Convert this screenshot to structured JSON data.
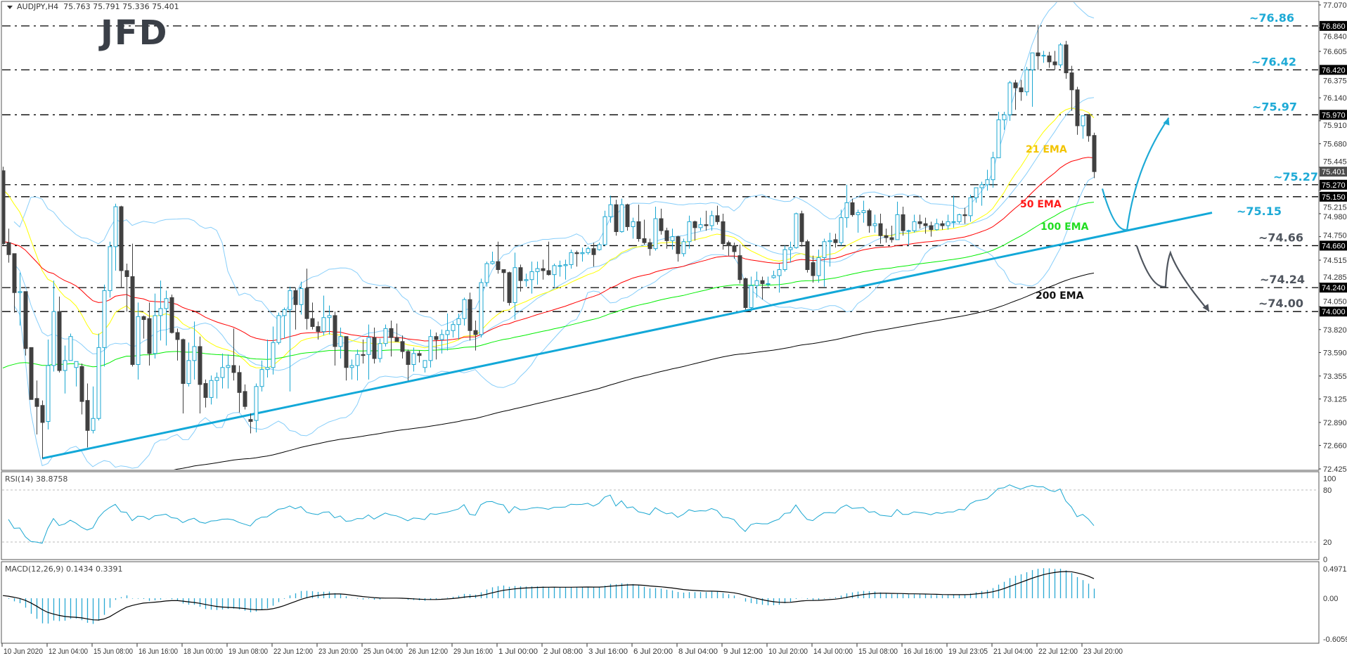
{
  "title": {
    "symbol": "AUDJPY,H4",
    "ohlc": "75.763 75.791 75.336 75.401"
  },
  "logo_text": "JFD",
  "chart_data": {
    "type": "candlestick",
    "symbol": "AUDJPY",
    "timeframe": "H4",
    "colors": {
      "bull": "#1ba7d1",
      "bear": "#404040",
      "bands": "#87cefa",
      "trendline": "#12a8d8",
      "up_scenario": "#1eaad6",
      "down_scenario": "#4f555e"
    },
    "y_axis": {
      "min": 72.425,
      "max": 77.07,
      "ticks": [
        "77.070",
        "76.840",
        "76.605",
        "76.375",
        "76.140",
        "75.910",
        "75.680",
        "75.445",
        "75.215",
        "74.980",
        "74.750",
        "74.515",
        "74.285",
        "74.050",
        "73.820",
        "73.590",
        "73.355",
        "73.125",
        "72.890",
        "72.660",
        "72.425"
      ]
    },
    "x_axis": {
      "tick_every_bars": 8,
      "tick_labels": [
        "10 Jun 2020",
        "12 Jun 04:00",
        "15 Jun 08:00",
        "16 Jun 16:00",
        "18 Jun 00:00",
        "19 Jun 08:00",
        "22 Jun 12:00",
        "23 Jun 20:00",
        "25 Jun 04:00",
        "26 Jun 12:00",
        "29 Jun 16:00",
        "1 Jul 00:00",
        "2 Jul 08:00",
        "3 Jul 16:00",
        "6 Jul 20:00",
        "8 Jul 04:00",
        "9 Jul 12:00",
        "10 Jul 20:00",
        "14 Jul 00:00",
        "15 Jul 08:00",
        "16 Jul 16:00",
        "19 Jul 23:05",
        "21 Jul 04:00",
        "22 Jul 12:00",
        "23 Jul 20:00"
      ]
    },
    "current_price": "75.401",
    "candles_ohlc": [
      [
        75.41,
        75.45,
        74.66,
        74.68
      ],
      [
        74.69,
        74.83,
        74.49,
        74.57
      ],
      [
        74.58,
        74.58,
        73.99,
        74.19
      ],
      [
        74.19,
        74.39,
        73.86,
        74.2
      ],
      [
        74.2,
        74.2,
        73.56,
        73.63
      ],
      [
        73.64,
        73.64,
        73.12,
        73.12
      ],
      [
        73.13,
        73.31,
        72.77,
        73.05
      ],
      [
        73.06,
        73.11,
        72.53,
        72.89
      ],
      [
        72.9,
        73.72,
        72.82,
        73.46
      ],
      [
        73.46,
        74.31,
        73.4,
        74.0
      ],
      [
        74.0,
        74.15,
        73.39,
        73.41
      ],
      [
        73.41,
        73.66,
        73.18,
        73.51
      ],
      [
        73.51,
        73.78,
        73.51,
        73.75
      ],
      [
        73.44,
        73.5,
        73.25,
        73.5
      ],
      [
        73.45,
        73.48,
        72.97,
        73.1
      ],
      [
        73.11,
        73.28,
        72.64,
        72.81
      ],
      [
        72.81,
        73.25,
        72.78,
        72.93
      ],
      [
        72.93,
        73.78,
        72.91,
        73.64
      ],
      [
        73.64,
        74.27,
        73.45,
        74.21
      ],
      [
        74.21,
        74.7,
        74.14,
        74.65
      ],
      [
        74.65,
        75.08,
        74.41,
        75.05
      ],
      [
        75.05,
        75.06,
        74.24,
        74.41
      ],
      [
        74.41,
        74.48,
        74.0,
        74.35
      ],
      [
        74.35,
        74.68,
        73.45,
        73.47
      ],
      [
        73.47,
        74.09,
        73.32,
        73.95
      ],
      [
        73.95,
        73.96,
        73.73,
        73.92
      ],
      [
        73.93,
        74.09,
        73.46,
        73.58
      ],
      [
        73.58,
        74.18,
        73.53,
        73.96
      ],
      [
        73.96,
        74.31,
        73.71,
        74.03
      ],
      [
        74.03,
        74.21,
        73.66,
        74.13
      ],
      [
        74.14,
        74.17,
        73.78,
        73.79
      ],
      [
        73.79,
        73.83,
        73.51,
        73.72
      ],
      [
        73.72,
        73.73,
        72.98,
        73.28
      ],
      [
        73.28,
        73.69,
        73.25,
        73.51
      ],
      [
        73.51,
        73.9,
        73.32,
        73.65
      ],
      [
        73.65,
        73.75,
        72.98,
        73.27
      ],
      [
        73.28,
        73.32,
        73.04,
        73.14
      ],
      [
        73.14,
        73.36,
        73.07,
        73.31
      ],
      [
        73.31,
        73.39,
        73.13,
        73.34
      ],
      [
        73.34,
        73.58,
        73.23,
        73.44
      ],
      [
        73.44,
        73.57,
        73.23,
        73.46
      ],
      [
        73.46,
        73.83,
        73.31,
        73.39
      ],
      [
        73.39,
        73.46,
        72.99,
        73.19
      ],
      [
        73.2,
        73.27,
        73.02,
        73.05
      ],
      [
        72.92,
        72.98,
        72.78,
        72.9
      ],
      [
        72.91,
        73.28,
        72.79,
        73.25
      ],
      [
        73.25,
        73.51,
        73.2,
        73.42
      ],
      [
        73.42,
        73.72,
        73.34,
        73.44
      ],
      [
        73.44,
        73.85,
        73.37,
        73.69
      ],
      [
        73.69,
        73.99,
        73.67,
        73.96
      ],
      [
        73.96,
        74.04,
        73.73,
        74.02
      ],
      [
        74.02,
        74.25,
        73.2,
        74.21
      ],
      [
        74.21,
        74.24,
        73.82,
        74.07
      ],
      [
        74.07,
        74.3,
        73.97,
        74.23
      ],
      [
        74.23,
        74.43,
        73.82,
        73.93
      ],
      [
        73.93,
        74.09,
        73.82,
        73.85
      ],
      [
        73.85,
        73.9,
        73.72,
        73.8
      ],
      [
        73.8,
        74.16,
        73.76,
        73.94
      ],
      [
        73.94,
        74.06,
        73.77,
        73.96
      ],
      [
        73.96,
        74.0,
        73.46,
        73.65
      ],
      [
        73.65,
        73.84,
        73.53,
        73.75
      ],
      [
        73.75,
        73.75,
        73.31,
        73.44
      ],
      [
        73.44,
        73.52,
        73.32,
        73.46
      ],
      [
        73.46,
        73.62,
        73.31,
        73.57
      ],
      [
        73.57,
        73.72,
        73.48,
        73.56
      ],
      [
        73.57,
        73.87,
        73.32,
        73.74
      ],
      [
        73.74,
        73.84,
        73.48,
        73.53
      ],
      [
        73.53,
        73.73,
        73.49,
        73.68
      ],
      [
        73.68,
        73.87,
        73.65,
        73.83
      ],
      [
        73.83,
        73.91,
        73.55,
        73.74
      ],
      [
        73.74,
        73.88,
        73.7,
        73.7
      ],
      [
        73.7,
        73.76,
        73.53,
        73.6
      ],
      [
        73.6,
        73.62,
        73.31,
        73.47
      ],
      [
        73.47,
        73.64,
        73.4,
        73.58
      ],
      [
        73.58,
        73.61,
        73.49,
        73.56
      ],
      [
        73.44,
        73.51,
        73.39,
        73.51
      ],
      [
        73.51,
        73.82,
        73.44,
        73.75
      ],
      [
        73.75,
        73.79,
        73.52,
        73.72
      ],
      [
        73.72,
        73.82,
        73.58,
        73.77
      ],
      [
        73.77,
        73.98,
        73.61,
        73.81
      ],
      [
        73.81,
        73.9,
        73.74,
        73.87
      ],
      [
        73.87,
        73.98,
        73.72,
        73.93
      ],
      [
        73.93,
        74.14,
        73.86,
        74.12
      ],
      [
        74.12,
        74.19,
        73.71,
        73.81
      ],
      [
        73.81,
        73.91,
        73.61,
        73.77
      ],
      [
        73.77,
        74.33,
        73.74,
        74.29
      ],
      [
        74.29,
        74.5,
        74.25,
        74.48
      ],
      [
        74.48,
        74.6,
        74.47,
        74.5
      ],
      [
        74.5,
        74.7,
        74.38,
        74.42
      ],
      [
        74.42,
        74.42,
        74.1,
        74.39
      ],
      [
        74.39,
        74.4,
        74.06,
        74.09
      ],
      [
        74.09,
        74.59,
        73.92,
        74.44
      ],
      [
        74.44,
        74.47,
        74.2,
        74.31
      ],
      [
        74.31,
        74.38,
        74.25,
        74.32
      ],
      [
        74.32,
        74.5,
        74.18,
        74.4
      ],
      [
        74.4,
        74.5,
        74.27,
        74.43
      ],
      [
        74.43,
        74.52,
        74.32,
        74.41
      ],
      [
        74.41,
        74.7,
        74.36,
        74.37
      ],
      [
        74.37,
        74.48,
        74.25,
        74.46
      ],
      [
        74.46,
        74.51,
        74.35,
        74.46
      ],
      [
        74.46,
        74.52,
        74.32,
        74.47
      ],
      [
        74.47,
        74.62,
        74.43,
        74.59
      ],
      [
        74.59,
        74.61,
        74.45,
        74.58
      ],
      [
        74.58,
        74.64,
        74.5,
        74.59
      ],
      [
        74.59,
        74.65,
        74.57,
        74.63
      ],
      [
        74.63,
        74.69,
        74.45,
        74.57
      ],
      [
        74.62,
        74.69,
        74.61,
        74.67
      ],
      [
        74.67,
        75.01,
        74.66,
        74.95
      ],
      [
        74.95,
        75.16,
        74.89,
        75.07
      ],
      [
        75.07,
        75.12,
        74.76,
        74.8
      ],
      [
        74.8,
        75.13,
        74.79,
        75.07
      ],
      [
        75.07,
        75.08,
        74.81,
        74.85
      ],
      [
        74.85,
        74.94,
        74.73,
        74.9
      ],
      [
        74.9,
        75.07,
        74.7,
        74.73
      ],
      [
        74.73,
        74.92,
        74.67,
        74.69
      ],
      [
        74.69,
        74.73,
        74.56,
        74.63
      ],
      [
        74.63,
        75.05,
        74.61,
        74.93
      ],
      [
        74.93,
        75.03,
        74.77,
        74.81
      ],
      [
        74.81,
        74.84,
        74.63,
        74.71
      ],
      [
        74.71,
        74.83,
        74.62,
        74.75
      ],
      [
        74.75,
        74.76,
        74.5,
        74.58
      ],
      [
        74.58,
        74.73,
        74.55,
        74.7
      ],
      [
        74.7,
        74.96,
        74.63,
        74.9
      ],
      [
        74.9,
        74.91,
        74.71,
        74.84
      ],
      [
        74.84,
        74.94,
        74.81,
        74.87
      ],
      [
        74.87,
        75.01,
        74.81,
        74.86
      ],
      [
        74.86,
        75.01,
        74.81,
        74.96
      ],
      [
        74.96,
        75.06,
        74.87,
        74.9
      ],
      [
        74.9,
        74.98,
        74.62,
        74.68
      ],
      [
        74.69,
        74.71,
        74.56,
        74.66
      ],
      [
        74.66,
        74.69,
        74.53,
        74.6
      ],
      [
        74.56,
        74.67,
        74.28,
        74.32
      ],
      [
        74.33,
        74.34,
        74.02,
        74.04
      ],
      [
        74.04,
        74.35,
        74.0,
        74.26
      ],
      [
        74.26,
        74.4,
        74.14,
        74.31
      ],
      [
        74.31,
        74.35,
        74.12,
        74.28
      ],
      [
        74.28,
        74.35,
        74.25,
        74.28
      ],
      [
        74.34,
        74.41,
        74.33,
        74.36
      ],
      [
        74.36,
        74.48,
        74.19,
        74.42
      ],
      [
        74.42,
        74.66,
        74.4,
        74.62
      ],
      [
        74.62,
        74.7,
        74.49,
        74.64
      ],
      [
        74.64,
        74.99,
        74.63,
        74.98
      ],
      [
        74.98,
        75.01,
        74.65,
        74.7
      ],
      [
        74.7,
        74.72,
        74.39,
        74.42
      ],
      [
        74.49,
        74.56,
        74.29,
        74.36
      ],
      [
        74.36,
        74.62,
        74.29,
        74.54
      ],
      [
        74.54,
        74.73,
        74.25,
        74.7
      ],
      [
        74.7,
        74.79,
        74.45,
        74.71
      ],
      [
        74.72,
        74.78,
        74.64,
        74.69
      ],
      [
        74.69,
        75.02,
        74.66,
        74.94
      ],
      [
        74.94,
        75.27,
        74.84,
        75.09
      ],
      [
        75.09,
        75.13,
        74.95,
        74.97
      ],
      [
        74.97,
        75.02,
        74.79,
        74.99
      ],
      [
        74.99,
        75.11,
        74.89,
        75.01
      ],
      [
        75.01,
        75.03,
        74.79,
        74.86
      ],
      [
        74.86,
        74.97,
        74.79,
        74.88
      ],
      [
        74.88,
        74.98,
        74.68,
        74.76
      ],
      [
        74.76,
        74.83,
        74.69,
        74.74
      ],
      [
        74.74,
        74.86,
        74.69,
        74.72
      ],
      [
        74.72,
        75.1,
        74.72,
        74.97
      ],
      [
        74.97,
        75.05,
        74.76,
        74.81
      ],
      [
        74.81,
        74.82,
        74.66,
        74.81
      ],
      [
        74.81,
        74.97,
        74.79,
        74.9
      ],
      [
        74.9,
        74.97,
        74.83,
        74.88
      ],
      [
        74.88,
        74.94,
        74.78,
        74.86
      ],
      [
        74.86,
        74.9,
        74.75,
        74.82
      ],
      [
        74.82,
        74.93,
        74.81,
        74.88
      ],
      [
        74.88,
        74.91,
        74.82,
        74.86
      ],
      [
        74.86,
        74.97,
        74.82,
        74.9
      ],
      [
        74.9,
        75.16,
        74.84,
        74.9
      ],
      [
        74.9,
        74.98,
        74.88,
        74.97
      ],
      [
        74.97,
        75.04,
        74.88,
        74.96
      ],
      [
        74.96,
        75.17,
        74.9,
        75.14
      ],
      [
        75.14,
        75.24,
        75.09,
        75.24
      ],
      [
        75.24,
        75.3,
        75.06,
        75.27
      ],
      [
        75.27,
        75.42,
        75.21,
        75.32
      ],
      [
        75.32,
        75.6,
        75.24,
        75.54
      ],
      [
        75.54,
        76.0,
        75.54,
        75.92
      ],
      [
        75.92,
        76.0,
        75.82,
        75.97
      ],
      [
        75.97,
        76.31,
        75.91,
        76.29
      ],
      [
        76.29,
        76.32,
        76.02,
        76.24
      ],
      [
        76.24,
        76.32,
        76.11,
        76.2
      ],
      [
        76.2,
        76.45,
        76.16,
        76.42
      ],
      [
        76.42,
        76.59,
        76.05,
        76.59
      ],
      [
        76.59,
        76.87,
        76.42,
        76.56
      ],
      [
        76.56,
        76.61,
        76.49,
        76.565
      ],
      [
        76.56,
        76.6,
        76.44,
        76.5
      ],
      [
        76.5,
        76.61,
        76.42,
        76.47
      ],
      [
        76.47,
        76.69,
        76.44,
        76.67
      ],
      [
        76.67,
        76.71,
        76.33,
        76.39
      ],
      [
        76.39,
        76.46,
        76.01,
        76.22
      ],
      [
        76.22,
        76.25,
        75.77,
        75.86
      ],
      [
        75.86,
        75.96,
        75.73,
        75.96
      ],
      [
        75.96,
        75.97,
        75.7,
        75.76
      ],
      [
        75.763,
        75.791,
        75.336,
        75.401
      ]
    ],
    "levels": [
      {
        "value": 76.86,
        "label": "~76.86",
        "tag": "76.860",
        "color": "#1eaad6"
      },
      {
        "value": 76.42,
        "label": "~76.42",
        "tag": "76.420",
        "color": "#1eaad6"
      },
      {
        "value": 75.97,
        "label": "~75.97",
        "tag": "75.970",
        "color": "#1eaad6"
      },
      {
        "value": 75.27,
        "label": "~75.27",
        "tag": "75.270",
        "color": "#1eaad6"
      },
      {
        "value": 75.15,
        "label": "~75.15",
        "tag": "75.150",
        "color": "#1eaad6"
      },
      {
        "value": 74.66,
        "label": "~74.66",
        "tag": "74.660",
        "color": "#4f555e"
      },
      {
        "value": 74.24,
        "label": "~74.24",
        "tag": "74.240",
        "color": "#4f555e"
      },
      {
        "value": 74.0,
        "label": "~74.00",
        "tag": "74.000",
        "color": "#4f555e"
      }
    ],
    "ema": [
      {
        "period": 21,
        "label": "21 EMA",
        "color": "#ffff00",
        "label_color": "#f2c400",
        "seed": 75.28
      },
      {
        "period": 50,
        "label": "50 EMA",
        "color": "#ff0000",
        "label_color": "#ff1a1a",
        "seed": 74.7
      },
      {
        "period": 100,
        "label": "100 EMA",
        "color": "#00ee00",
        "label_color": "#22dd22",
        "seed": 73.41
      },
      {
        "period": 200,
        "label": "200 EMA",
        "color": "#000000",
        "label_color": "#111111",
        "seed": 71.9
      }
    ],
    "bollinger": {
      "period": 20,
      "deviation": 2
    },
    "trendline": {
      "from": {
        "bar": 7,
        "price": 72.53
      },
      "to": {
        "bar": 215,
        "price": 74.99
      }
    },
    "scenarios": {
      "up": [
        {
          "bar": 195.5,
          "price": 75.23
        },
        {
          "bar": 199.9,
          "price": 74.82
        },
        {
          "bar": 207.3,
          "price": 75.94
        }
      ],
      "down": [
        {
          "bar": 201.6,
          "price": 74.66
        },
        {
          "bar": 206.75,
          "price": 74.25
        },
        {
          "bar": 207.6,
          "price": 74.59
        },
        {
          "bar": 214.5,
          "price": 74.0
        }
      ]
    },
    "rsi": {
      "label": "RSI(14) 38.8758",
      "period": 14,
      "levels": [
        80,
        20
      ],
      "axis": [
        "100",
        "80",
        "20",
        "0"
      ],
      "color": "#1ba7d1"
    },
    "macd": {
      "label": "MACD(12,26,9) 0.1434 0.3391",
      "fast": 12,
      "slow": 26,
      "signal": 9,
      "axis": [
        "0.4971",
        "0.00",
        "-0.6059"
      ],
      "hist_color": "#2aa9d4",
      "signal_color": "#000000"
    }
  }
}
